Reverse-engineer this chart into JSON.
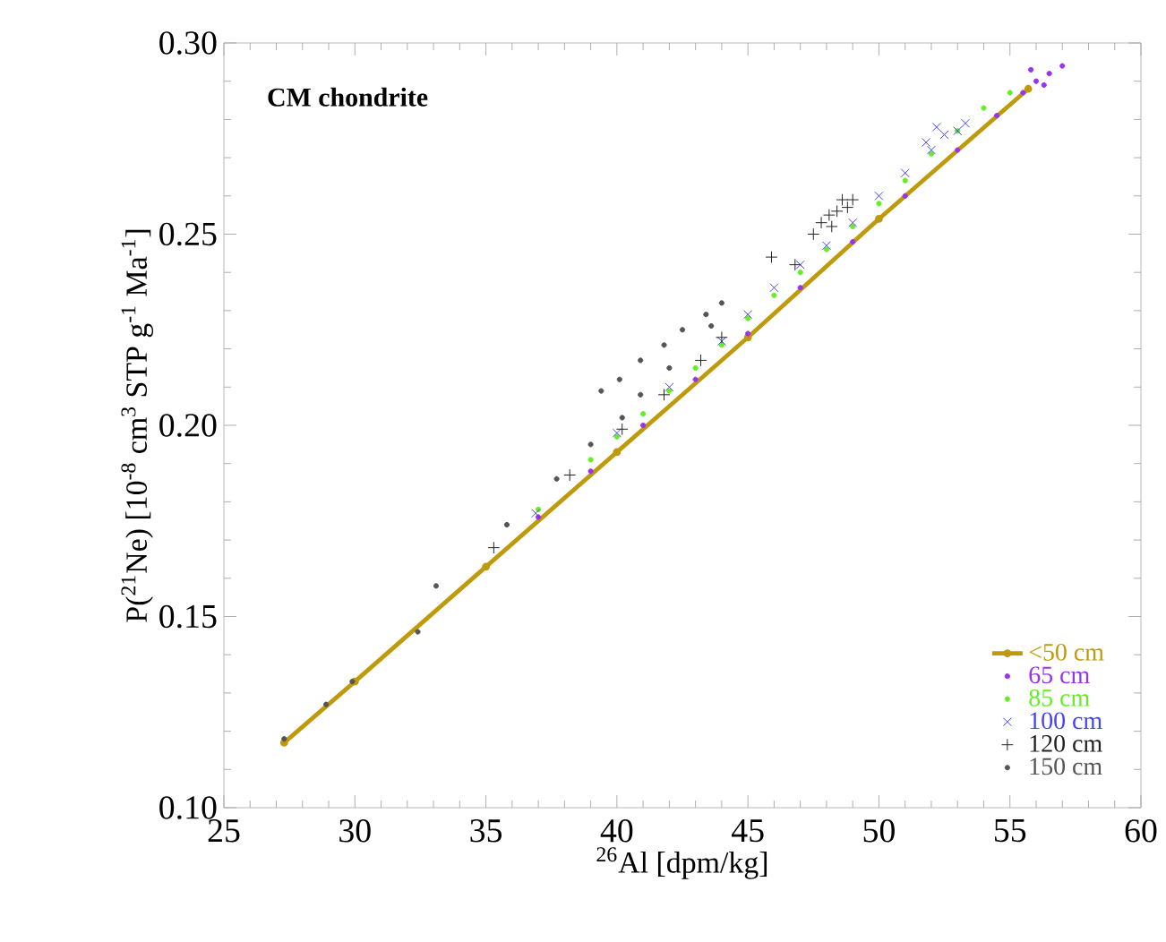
{
  "chart_data": {
    "type": "scatter",
    "xlabel": "$^{26}$Al [dpm/kg]",
    "ylabel": "P($^{21}$Ne) [10$^{-8}$ cm$^{3}$ STP g$^{-1}$ Ma$^{-1}$]",
    "annotations": [
      "CM chondrite"
    ],
    "xlim": [
      25,
      60
    ],
    "xticks": [
      25,
      30,
      35,
      40,
      45,
      50,
      55,
      60
    ],
    "ylim": [
      0.1,
      0.3
    ],
    "yticks": [
      {
        "value": 0.1,
        "label": "0.10"
      },
      0.15,
      {
        "value": 0.2,
        "label": "0.20"
      },
      0.25,
      {
        "value": 0.3,
        "label": "0.30"
      }
    ],
    "grid": false,
    "legend": "bottom right",
    "series": [
      {
        "name": "<50 cm",
        "type": "line",
        "color": "#bf9a0a",
        "marker": "circle",
        "line_style": "solid",
        "x": [
          27.3,
          30,
          35,
          40,
          45,
          50,
          55.7
        ],
        "values": [
          0.117,
          0.133,
          0.163,
          0.193,
          0.223,
          0.254,
          0.288
        ]
      },
      {
        "name": "65 cm",
        "color": "#9933ee",
        "marker": "circle",
        "x": [
          37,
          39,
          41,
          43,
          45,
          47,
          49,
          51,
          53,
          54.5,
          55.5,
          56,
          56.5,
          57,
          55.8,
          56.3
        ],
        "values": [
          0.176,
          0.188,
          0.2,
          0.212,
          0.224,
          0.236,
          0.248,
          0.26,
          0.272,
          0.281,
          0.287,
          0.29,
          0.292,
          0.294,
          0.293,
          0.289
        ]
      },
      {
        "name": "85 cm",
        "color": "#66ee22",
        "marker": "circle",
        "x": [
          37,
          39,
          40,
          41,
          42,
          43,
          44,
          45,
          46,
          47,
          48,
          49,
          50,
          51,
          52,
          53,
          54,
          55
        ],
        "values": [
          0.178,
          0.191,
          0.197,
          0.203,
          0.209,
          0.215,
          0.221,
          0.228,
          0.234,
          0.24,
          0.246,
          0.252,
          0.258,
          0.264,
          0.271,
          0.277,
          0.283,
          0.287
        ]
      },
      {
        "name": "100 cm",
        "color": "#4444ff",
        "marker": "x",
        "x": [
          36.9,
          40,
          42,
          44,
          45,
          46,
          47,
          48,
          49,
          50,
          51,
          52,
          52.5,
          53,
          51.8,
          52.2,
          53.3
        ],
        "values": [
          0.177,
          0.198,
          0.21,
          0.222,
          0.229,
          0.236,
          0.242,
          0.247,
          0.253,
          0.26,
          0.266,
          0.272,
          0.276,
          0.277,
          0.274,
          0.278,
          0.279
        ]
      },
      {
        "name": "120 cm",
        "color": "#222222",
        "marker": "cross",
        "x": [
          35.3,
          38.2,
          40.2,
          41.8,
          43.2,
          44.0,
          45.9,
          46.8,
          47.5,
          47.8,
          48.1,
          48.4,
          48.8,
          49.0,
          48.6,
          48.2
        ],
        "values": [
          0.168,
          0.187,
          0.199,
          0.208,
          0.217,
          0.223,
          0.244,
          0.242,
          0.25,
          0.253,
          0.255,
          0.256,
          0.257,
          0.259,
          0.259,
          0.252
        ]
      },
      {
        "name": "150 cm",
        "color": "#555555",
        "marker": "circle",
        "x": [
          27.3,
          28.9,
          29.9,
          32.4,
          33.1,
          35.8,
          37.7,
          39.0,
          40.2,
          40.9,
          39.4,
          40.1,
          40.9,
          41.8,
          42.5,
          43.4,
          44.0,
          42.0,
          43.6
        ],
        "values": [
          0.118,
          0.127,
          0.133,
          0.146,
          0.158,
          0.174,
          0.186,
          0.195,
          0.202,
          0.208,
          0.209,
          0.212,
          0.217,
          0.221,
          0.225,
          0.229,
          0.232,
          0.215,
          0.226
        ]
      }
    ]
  }
}
